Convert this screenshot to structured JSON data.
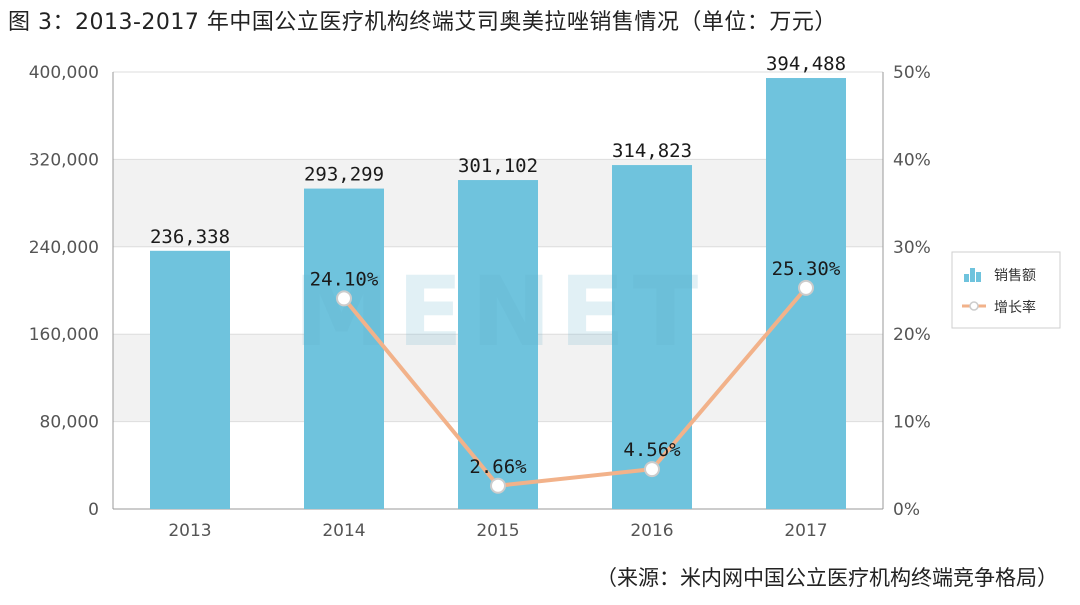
{
  "title": "图 3：2013-2017 年中国公立医疗机构终端艾司奥美拉唑销售情况（单位：万元）",
  "source": "（来源：米内网中国公立医疗机构终端竞争格局）",
  "watermark": "米内网 MENET",
  "colors": {
    "bar": "#6fc3dd",
    "line": "#f2b28a",
    "marker": "#ffffff",
    "grid": "#dddddd",
    "band": "#f2f2f2"
  },
  "chart_data": {
    "type": "bar",
    "categories": [
      "2013",
      "2014",
      "2015",
      "2016",
      "2017"
    ],
    "series": [
      {
        "name": "销售额",
        "type": "bar",
        "axis": "left",
        "values": [
          236338,
          293299,
          301102,
          314823,
          394488
        ],
        "labels": [
          "236,338",
          "293,299",
          "301,102",
          "314,823",
          "394,488"
        ]
      },
      {
        "name": "增长率",
        "type": "line",
        "axis": "right",
        "values": [
          null,
          24.1,
          2.66,
          4.56,
          25.3
        ],
        "labels": [
          "",
          "24.10%",
          "2.66%",
          "4.56%",
          "25.30%"
        ]
      }
    ],
    "y_left": {
      "ylim": [
        0,
        400000
      ],
      "ticks": [
        "0",
        "80,000",
        "160,000",
        "240,000",
        "320,000",
        "400,000"
      ]
    },
    "y_right": {
      "ylim": [
        0,
        50
      ],
      "ticks": [
        "0%",
        "10%",
        "20%",
        "30%",
        "40%",
        "50%"
      ]
    },
    "legend": {
      "placement": "right",
      "items": [
        "销售额",
        "增长率"
      ]
    },
    "grid": true
  }
}
